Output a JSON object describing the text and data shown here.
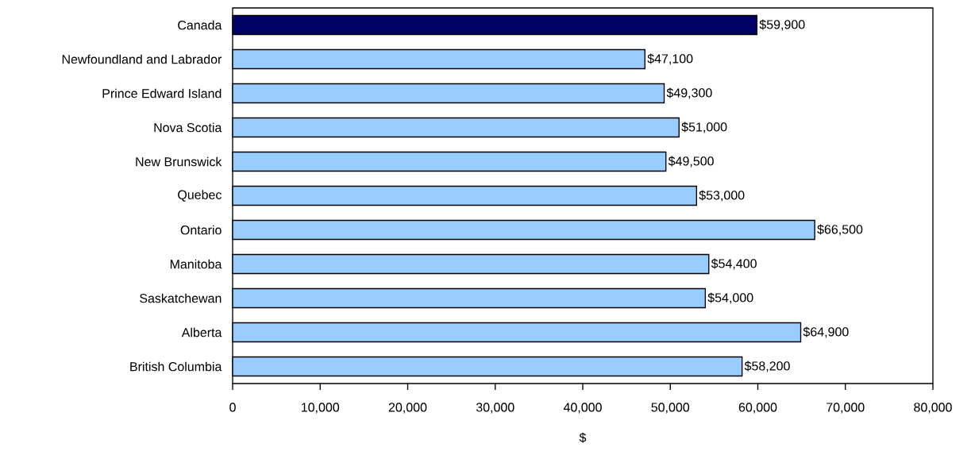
{
  "chart_data": {
    "type": "bar",
    "orientation": "horizontal",
    "xlabel": "$",
    "categories": [
      "Canada",
      "Newfoundland and Labrador",
      "Prince Edward Island",
      "Nova Scotia",
      "New Brunswick",
      "Quebec",
      "Ontario",
      "Manitoba",
      "Saskatchewan",
      "Alberta",
      "British Columbia"
    ],
    "values": [
      59900,
      47100,
      49300,
      51000,
      49500,
      53000,
      66500,
      54400,
      54000,
      64900,
      58200
    ],
    "colors": [
      "#000066",
      "#99ccff",
      "#99ccff",
      "#99ccff",
      "#99ccff",
      "#99ccff",
      "#99ccff",
      "#99ccff",
      "#99ccff",
      "#99ccff",
      "#99ccff"
    ],
    "value_labels": [
      "$59,900",
      "$47,100",
      "$49,300",
      "$51,000",
      "$49,500",
      "$53,000",
      "$66,500",
      "$54,400",
      "$54,000",
      "$64,900",
      "$58,200"
    ],
    "xlim": [
      0,
      80000
    ],
    "xticks": [
      0,
      {
        "value": 10000,
        "label": "10,000"
      },
      {
        "value": 20000,
        "label": "20,000"
      },
      {
        "value": 30000,
        "label": "30,000"
      },
      {
        "value": 40000,
        "label": "40,000"
      },
      {
        "value": 50000,
        "label": "50,000"
      },
      {
        "value": 60000,
        "label": "60,000"
      },
      {
        "value": 70000,
        "label": "70,000"
      },
      {
        "value": 80000,
        "label": "80,000"
      }
    ],
    "grid": false
  }
}
